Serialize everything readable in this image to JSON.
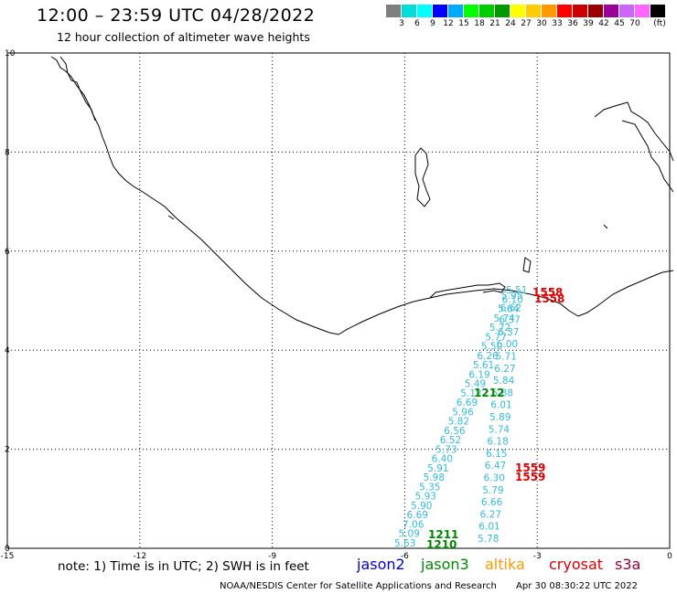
{
  "header": {
    "title": "12:00 – 23:59 UTC 04/28/2022",
    "subtitle": "12 hour collection of altimeter wave heights"
  },
  "color_scale": {
    "unit": "(ft)",
    "swatches": [
      "#7f7f7f",
      "#00dcdc",
      "#00ffff",
      "#0000ff",
      "#00aaff",
      "#00ff00",
      "#00cc00",
      "#009900",
      "#ffff00",
      "#ffcc00",
      "#ff9900",
      "#ff0000",
      "#cc0000",
      "#990000",
      "#990099",
      "#cc66ff",
      "#ff66ff",
      "#000000"
    ],
    "labels": [
      "3",
      "6",
      "9",
      "12",
      "15",
      "18",
      "21",
      "24",
      "27",
      "30",
      "33",
      "36",
      "39",
      "42",
      "45",
      "70"
    ]
  },
  "map": {
    "x_ticks": [
      "-15",
      "-12",
      "-9",
      "-6",
      "-3",
      "0"
    ],
    "y_ticks": [
      "0",
      "2",
      "4",
      "6",
      "8",
      "10"
    ],
    "x_range": [
      -15,
      0
    ],
    "y_range": [
      0,
      10
    ],
    "grid": "dotted"
  },
  "observations": {
    "track_a": [
      "5.63",
      "5.09",
      "7.06",
      "6.69",
      "5.90",
      "5.93",
      "5.35",
      "5.98",
      "5.91",
      "6.40",
      "5.73",
      "6.52",
      "6.56",
      "5.82",
      "5.96",
      "6.69",
      "5.12",
      "5.49",
      "6.19",
      "5.61",
      "6.26",
      "5.50",
      "5.77",
      "5.72",
      "5.74",
      "5.64",
      "6.10",
      "5.51"
    ],
    "track_b": [
      "5.78",
      "6.01",
      "6.27",
      "6.66",
      "5.79",
      "6.30",
      "6.47",
      "6.15",
      "6.18",
      "5.74",
      "5.89",
      "6.01",
      "5.88",
      "5.84",
      "6.27",
      "5.71",
      "6.00",
      "6.37",
      "6.37",
      "6.62",
      "5.95"
    ],
    "timestamps": [
      "1210",
      "1211",
      "1212",
      "1559",
      "1559",
      "1558",
      "1558"
    ]
  },
  "legend": {
    "note": "note: 1) Time is in UTC; 2) SWH is in feet",
    "satellites": [
      {
        "name": "jason2",
        "color": "#0000cc"
      },
      {
        "name": "jason3",
        "color": "#008800"
      },
      {
        "name": "altika",
        "color": "#ff9900"
      },
      {
        "name": "cryosat",
        "color": "#dd0000"
      },
      {
        "name": "s3a",
        "color": "#990033"
      }
    ]
  },
  "footer": {
    "credit": "NOAA/NESDIS Center for Satellite Applications and Research",
    "generated": "Apr 30 08:30:22 UTC 2022"
  }
}
